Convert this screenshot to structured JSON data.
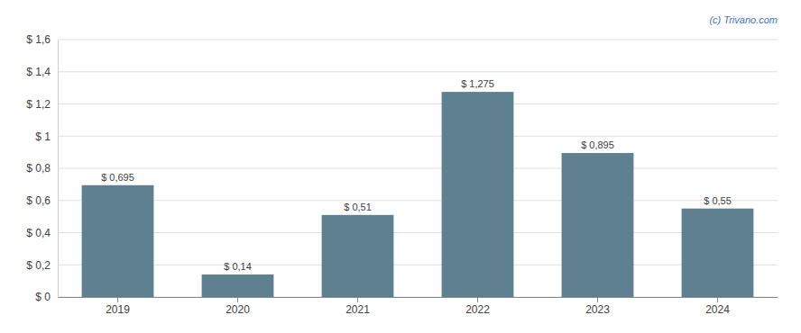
{
  "chart_data": {
    "type": "bar",
    "categories": [
      "2019",
      "2020",
      "2021",
      "2022",
      "2023",
      "2024"
    ],
    "values": [
      0.695,
      0.14,
      0.51,
      1.275,
      0.895,
      0.55
    ],
    "value_labels": [
      "$ 0,695",
      "$ 0,14",
      "$ 0,51",
      "$ 1,275",
      "$ 0,895",
      "$ 0,55"
    ],
    "data_labels": true,
    "color": "#5f8090",
    "ylim": [
      0,
      1.6
    ],
    "yticks": [
      {
        "value": 0,
        "label": "$ 0"
      },
      {
        "value": 0.2,
        "label": "$ 0,2"
      },
      {
        "value": 0.4,
        "label": "$ 0,4"
      },
      {
        "value": 0.6,
        "label": "$ 0,6"
      },
      {
        "value": 0.8,
        "label": "$ 0,8"
      },
      {
        "value": 1.0,
        "label": "$ 1"
      },
      {
        "value": 1.2,
        "label": "$ 1,2"
      },
      {
        "value": 1.4,
        "label": "$ 1,4"
      },
      {
        "value": 1.6,
        "label": "$ 1,6"
      }
    ],
    "grid": true,
    "annotations": [
      "(c) Trivano.com"
    ]
  }
}
